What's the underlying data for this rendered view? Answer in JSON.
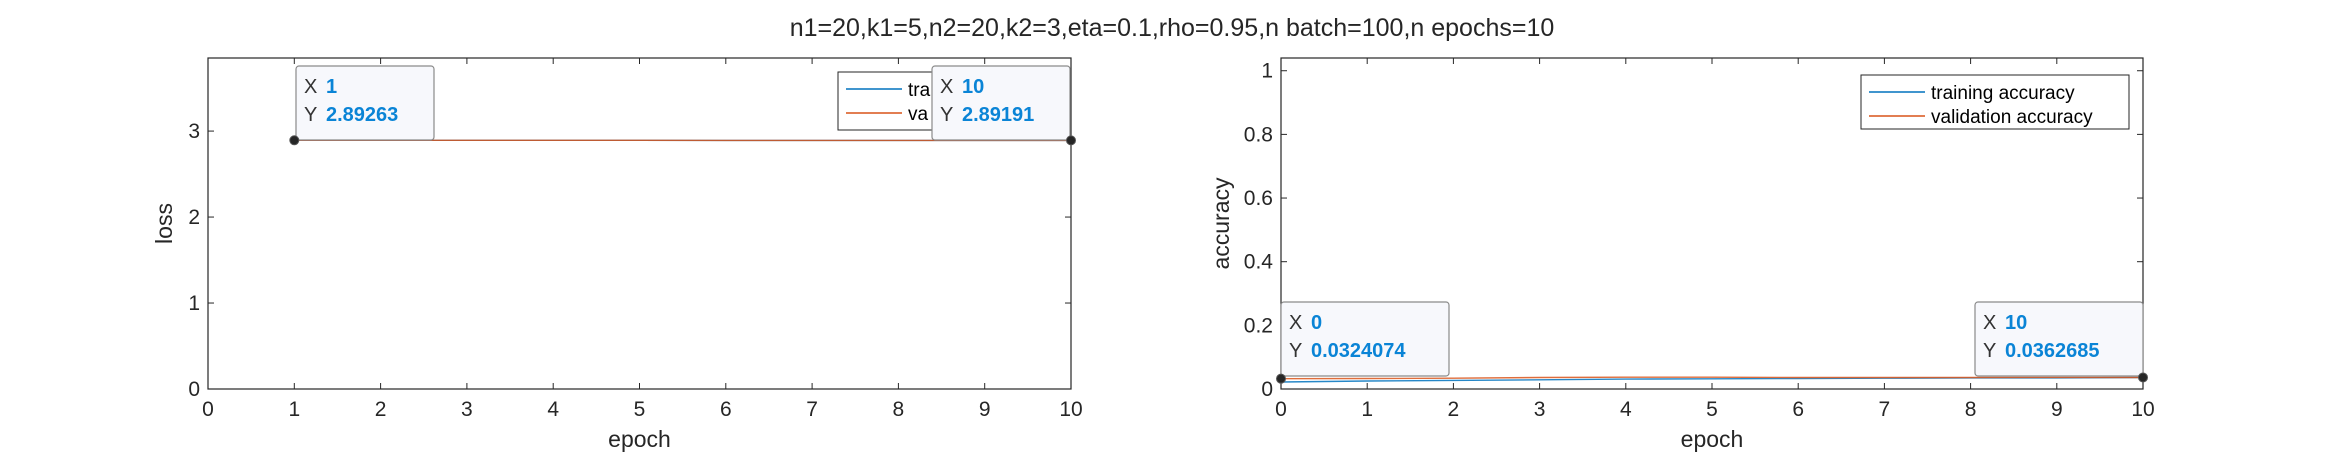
{
  "figure_title": "n1=20,k1=5,n2=20,k2=3,eta=0.1,rho=0.95,n batch=100,n epochs=10",
  "colors": {
    "training": "#0072BD",
    "validation": "#D95319",
    "axis": "#262626",
    "datatip_value": "#0a84d6"
  },
  "chart_data": [
    {
      "type": "line",
      "title": "",
      "xlabel": "epoch",
      "ylabel": "loss",
      "xlim": [
        0,
        10
      ],
      "ylim": [
        0,
        3.85
      ],
      "xticks": [
        "0",
        "1",
        "2",
        "3",
        "4",
        "5",
        "6",
        "7",
        "8",
        "9",
        "10"
      ],
      "yticks": [
        "0",
        "1",
        "2",
        "3"
      ],
      "grid": false,
      "legend_position": "top-right",
      "legend_visible_text": [
        "tra",
        "va"
      ],
      "series": [
        {
          "name": "tra",
          "x": [
            1,
            2,
            3,
            4,
            5,
            6,
            7,
            8,
            9,
            10
          ],
          "values": [
            2.8926,
            2.8925,
            2.8924,
            2.8923,
            2.8922,
            2.8921,
            2.892,
            2.892,
            2.8919,
            2.8919
          ]
        },
        {
          "name": "va",
          "x": [
            1,
            2,
            3,
            4,
            5,
            6,
            7,
            8,
            9,
            10
          ],
          "values": [
            2.89263,
            2.8925,
            2.8924,
            2.8923,
            2.8922,
            2.8921,
            2.892,
            2.89195,
            2.8919,
            2.89191
          ]
        }
      ],
      "datatips": [
        {
          "x_label": "X",
          "x_value": "1",
          "y_label": "Y",
          "y_value": "2.89263",
          "x": 1,
          "y": 2.89263
        },
        {
          "x_label": "X",
          "x_value": "10",
          "y_label": "Y",
          "y_value": "2.89191",
          "x": 10,
          "y": 2.89191
        }
      ]
    },
    {
      "type": "line",
      "title": "",
      "xlabel": "epoch",
      "ylabel": "accuracy",
      "xlim": [
        0,
        10
      ],
      "ylim": [
        0,
        1.04
      ],
      "xticks": [
        "0",
        "1",
        "2",
        "3",
        "4",
        "5",
        "6",
        "7",
        "8",
        "9",
        "10"
      ],
      "yticks": [
        "0",
        "0.2",
        "0.4",
        "0.6",
        "0.8",
        "1"
      ],
      "ytick_values": [
        0,
        0.2,
        0.4,
        0.6,
        0.8,
        1
      ],
      "grid": false,
      "legend_position": "top-right",
      "series": [
        {
          "name": "training accuracy",
          "x": [
            0,
            1,
            2,
            3,
            4,
            5,
            6,
            7,
            8,
            9,
            10
          ],
          "values": [
            0.022,
            0.025,
            0.027,
            0.029,
            0.031,
            0.032,
            0.033,
            0.034,
            0.035,
            0.035,
            0.036
          ]
        },
        {
          "name": "validation accuracy",
          "x": [
            0,
            1,
            2,
            3,
            4,
            5,
            6,
            7,
            8,
            9,
            10
          ],
          "values": [
            0.0324074,
            0.033,
            0.034,
            0.036,
            0.037,
            0.037,
            0.036,
            0.036,
            0.036,
            0.0363,
            0.0362685
          ]
        }
      ],
      "datatips": [
        {
          "x_label": "X",
          "x_value": "0",
          "y_label": "Y",
          "y_value": "0.0324074",
          "x": 0,
          "y": 0.0324074
        },
        {
          "x_label": "X",
          "x_value": "10",
          "y_label": "Y",
          "y_value": "0.0362685",
          "x": 10,
          "y": 0.0362685
        }
      ]
    }
  ]
}
